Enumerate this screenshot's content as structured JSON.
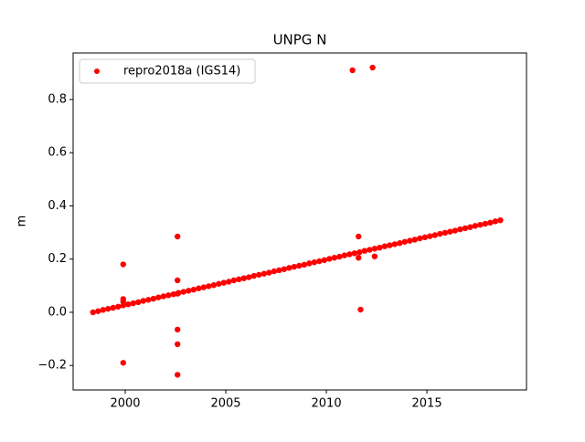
{
  "chart_data": {
    "type": "scatter",
    "title": "UNPG N",
    "ylabel": "m",
    "xlim": [
      1997.41,
      2019.95
    ],
    "ylim": [
      -0.292,
      0.975
    ],
    "xticks": [
      2000,
      2005,
      2010,
      2015
    ],
    "yticks": [
      {
        "value": -0.2,
        "label": "−0.2"
      },
      {
        "value": 0,
        "label": "0.0"
      },
      0.2,
      0.4,
      0.6,
      0.8
    ],
    "legend": "upper left",
    "grid": false,
    "series": [
      {
        "name": "repro2018a (IGS14)",
        "color": "#ff0000",
        "x": [
          1998.4,
          1998.65,
          1998.9,
          1999.15,
          1999.4,
          1999.65,
          1999.9,
          2000.15,
          2000.4,
          2000.65,
          2000.9,
          2001.15,
          2001.4,
          2001.65,
          2001.9,
          2002.15,
          2002.4,
          2002.65,
          2002.9,
          2003.15,
          2003.4,
          2003.65,
          2003.9,
          2004.15,
          2004.4,
          2004.65,
          2004.9,
          2005.15,
          2005.4,
          2005.65,
          2005.9,
          2006.15,
          2006.4,
          2006.65,
          2006.9,
          2007.15,
          2007.4,
          2007.65,
          2007.9,
          2008.15,
          2008.4,
          2008.65,
          2008.9,
          2009.15,
          2009.4,
          2009.65,
          2009.9,
          2010.15,
          2010.4,
          2010.65,
          2010.9,
          2011.15,
          2011.4,
          2011.65,
          2011.9,
          2012.15,
          2012.4,
          2012.65,
          2012.9,
          2013.15,
          2013.4,
          2013.65,
          2013.9,
          2014.15,
          2014.4,
          2014.65,
          2014.9,
          2015.15,
          2015.4,
          2015.65,
          2015.9,
          2016.15,
          2016.4,
          2016.65,
          2016.9,
          2017.15,
          2017.4,
          2017.65,
          2017.9,
          2018.15,
          2018.4,
          2018.65,
          1999.9,
          1999.9,
          1999.9,
          1999.9,
          2002.6,
          2002.6,
          2002.6,
          2002.6,
          2002.6,
          2002.6,
          2011.3,
          2012.3,
          2011.6,
          2011.6,
          2011.7,
          2012.4
        ],
        "values": [
          0,
          0.004,
          0.009,
          0.013,
          0.017,
          0.021,
          0.026,
          0.03,
          0.034,
          0.038,
          0.043,
          0.047,
          0.051,
          0.056,
          0.06,
          0.064,
          0.068,
          0.073,
          0.077,
          0.081,
          0.085,
          0.09,
          0.094,
          0.098,
          0.102,
          0.107,
          0.111,
          0.115,
          0.12,
          0.124,
          0.128,
          0.132,
          0.137,
          0.141,
          0.145,
          0.149,
          0.154,
          0.158,
          0.162,
          0.167,
          0.171,
          0.175,
          0.179,
          0.184,
          0.188,
          0.192,
          0.196,
          0.201,
          0.205,
          0.209,
          0.214,
          0.218,
          0.222,
          0.226,
          0.231,
          0.235,
          0.239,
          0.243,
          0.248,
          0.252,
          0.256,
          0.26,
          0.265,
          0.269,
          0.273,
          0.278,
          0.282,
          0.286,
          0.29,
          0.295,
          0.299,
          0.303,
          0.307,
          0.312,
          0.316,
          0.32,
          0.325,
          0.329,
          0.333,
          0.337,
          0.342,
          0.346,
          0.18,
          0.05,
          0.04,
          -0.19,
          0.285,
          0.12,
          0.07,
          -0.065,
          -0.12,
          -0.235,
          0.91,
          0.92,
          0.285,
          0.205,
          0.01,
          0.21
        ]
      }
    ]
  }
}
